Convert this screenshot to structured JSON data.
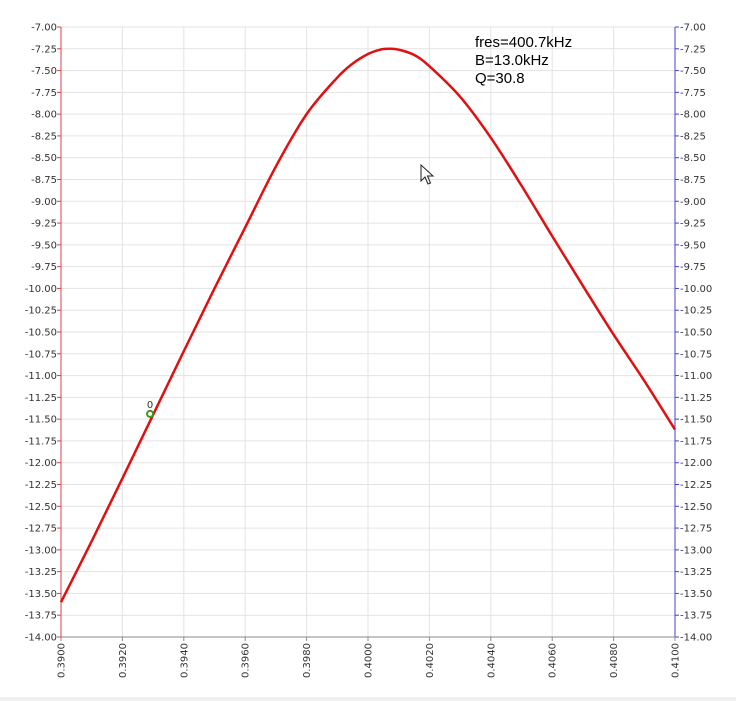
{
  "chart_data": {
    "type": "line",
    "xlim": [
      0.39,
      0.41
    ],
    "ylim": [
      -14.0,
      -7.0
    ],
    "x_ticks": [
      "0.3900",
      "0.3920",
      "0.3940",
      "0.3960",
      "0.3980",
      "0.4000",
      "0.4020",
      "0.4040",
      "0.4060",
      "0.4080",
      "0.4100"
    ],
    "y_ticks_left": [
      "-7.00",
      "-7.25",
      "-7.50",
      "-7.75",
      "-8.00",
      "-8.25",
      "-8.50",
      "-8.75",
      "-9.00",
      "-9.25",
      "-9.50",
      "-9.75",
      "-10.00",
      "-10.25",
      "-10.50",
      "-10.75",
      "-11.00",
      "-11.25",
      "-11.50",
      "-11.75",
      "-12.00",
      "-12.25",
      "-12.50",
      "-12.75",
      "-13.00",
      "-13.25",
      "-13.50",
      "-13.75",
      "-14.00"
    ],
    "y_ticks_right": [
      "-7.00",
      "-7.25",
      "-7.50",
      "-7.75",
      "-8.00",
      "-8.25",
      "-8.50",
      "-8.75",
      "-9.00",
      "-9.25",
      "-9.50",
      "-9.75",
      "-10.00",
      "-10.25",
      "-10.50",
      "-10.75",
      "-11.00",
      "-11.25",
      "-11.50",
      "-11.75",
      "-12.00",
      "-12.25",
      "-12.50",
      "-12.75",
      "-13.00",
      "-13.25",
      "-13.50",
      "-13.75",
      "-14.00"
    ],
    "grid": true,
    "annotations": [
      "fres=400.7kHz",
      "B=13.0kHz",
      "Q=30.8"
    ],
    "series": [
      {
        "color": "#e01010",
        "x": [
          0.39,
          0.391,
          0.392,
          0.393,
          0.394,
          0.395,
          0.396,
          0.397,
          0.398,
          0.399,
          0.3995,
          0.4,
          0.4004,
          0.4007,
          0.401,
          0.4015,
          0.402,
          0.403,
          0.404,
          0.405,
          0.406,
          0.407,
          0.408,
          0.409,
          0.41
        ],
        "y": [
          -13.6,
          -12.9,
          -12.18,
          -11.45,
          -10.72,
          -10.0,
          -9.3,
          -8.6,
          -8.0,
          -7.58,
          -7.42,
          -7.31,
          -7.26,
          -7.25,
          -7.26,
          -7.32,
          -7.45,
          -7.8,
          -8.27,
          -8.82,
          -9.4,
          -9.97,
          -10.53,
          -11.06,
          -11.62
        ]
      }
    ],
    "marker": {
      "label": "0",
      "x": 0.3929,
      "y": -11.44,
      "color": "#3a9a1a"
    }
  }
}
